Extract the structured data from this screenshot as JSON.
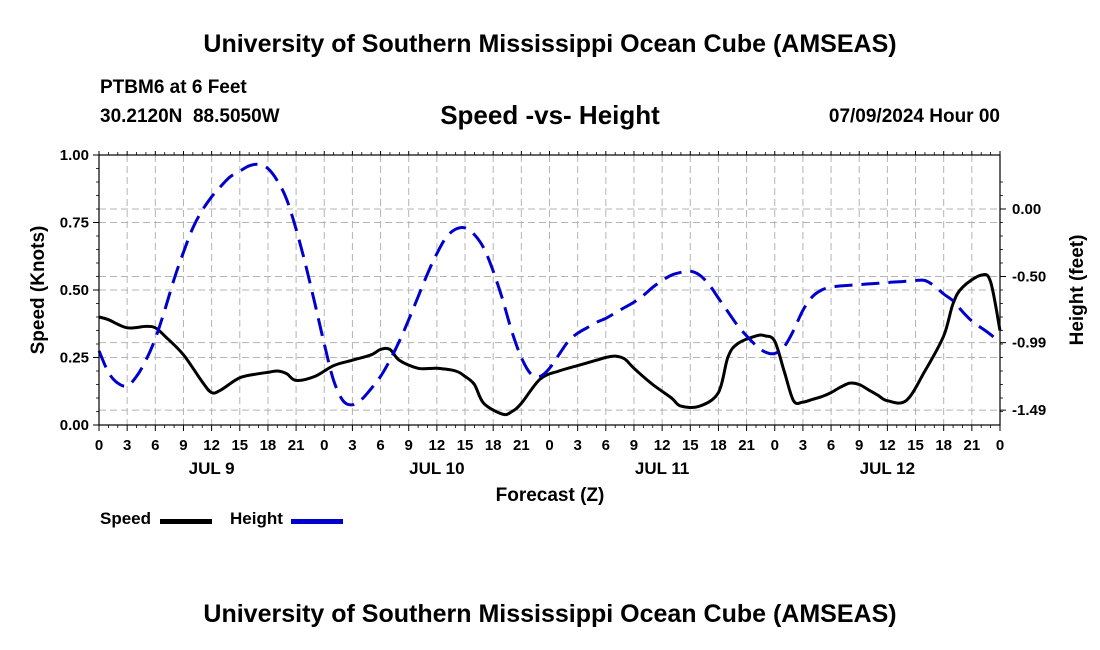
{
  "header": {
    "title": "University of Southern Mississippi Ocean Cube (AMSEAS)",
    "station": "PTBM6 at 6 Feet",
    "coordinates": "30.2120N  88.5050W",
    "datetime": "07/09/2024 Hour 00",
    "footer_title": "University of Southern Mississippi Ocean Cube (AMSEAS)"
  },
  "chart_data": {
    "type": "line",
    "title": "Speed -vs- Height",
    "xlabel": "Forecast (Z)",
    "ylabel": "Speed (Knots)",
    "y2label": "Height (feet)",
    "xlim": [
      0,
      96
    ],
    "ylim": [
      0,
      1.0
    ],
    "y2lim": [
      -1.6,
      0.4
    ],
    "x_ticks": [
      0,
      3,
      6,
      9,
      12,
      15,
      18,
      21,
      24,
      27,
      30,
      33,
      36,
      39,
      42,
      45,
      48,
      51,
      54,
      57,
      60,
      63,
      66,
      69,
      72,
      75,
      78,
      81,
      84,
      87,
      90,
      93,
      96
    ],
    "x_tick_labels": [
      "0",
      "3",
      "6",
      "9",
      "12",
      "15",
      "18",
      "21",
      "0",
      "3",
      "6",
      "9",
      "12",
      "15",
      "18",
      "21",
      "0",
      "3",
      "6",
      "9",
      "12",
      "15",
      "18",
      "21",
      "0",
      "3",
      "6",
      "9",
      "12",
      "15",
      "18",
      "21",
      "0"
    ],
    "day_labels": [
      {
        "x": 12,
        "label": "JUL 9"
      },
      {
        "x": 36,
        "label": "JUL 10"
      },
      {
        "x": 60,
        "label": "JUL 11"
      },
      {
        "x": 84,
        "label": "JUL 12"
      }
    ],
    "y_ticks": [
      0.0,
      0.25,
      0.5,
      0.75,
      1.0
    ],
    "y_tick_labels": [
      "0.00",
      "0.25",
      "0.50",
      "0.75",
      "1.00"
    ],
    "y2_ticks": [
      -1.49,
      -0.99,
      -0.5,
      0.0
    ],
    "y2_tick_labels": [
      "-1.49",
      "-0.99",
      "-0.50",
      "0.00"
    ],
    "grid": true,
    "legend": "bottom-left",
    "series": [
      {
        "name": "Speed",
        "axis": "left",
        "color": "#000000",
        "style": "solid",
        "x": [
          0,
          1,
          3,
          5,
          6,
          7,
          9,
          11,
          12,
          13,
          15,
          17,
          18,
          19,
          20,
          21,
          23,
          25,
          27,
          29,
          30,
          31,
          32,
          34,
          36,
          38,
          39,
          40,
          41,
          43,
          44,
          45,
          47,
          49,
          51,
          53,
          54,
          55,
          56,
          57,
          59,
          61,
          62,
          64,
          66,
          67,
          68,
          70,
          71,
          72,
          73,
          74,
          75,
          76,
          77,
          78,
          79,
          80,
          81,
          82,
          83,
          84,
          86,
          88,
          90,
          91,
          92,
          94,
          95,
          96
        ],
        "values": [
          0.4,
          0.39,
          0.36,
          0.365,
          0.36,
          0.33,
          0.26,
          0.16,
          0.12,
          0.13,
          0.175,
          0.19,
          0.195,
          0.2,
          0.19,
          0.165,
          0.18,
          0.22,
          0.24,
          0.26,
          0.28,
          0.28,
          0.24,
          0.21,
          0.21,
          0.2,
          0.18,
          0.15,
          0.08,
          0.04,
          0.05,
          0.08,
          0.17,
          0.2,
          0.22,
          0.24,
          0.25,
          0.255,
          0.245,
          0.21,
          0.15,
          0.1,
          0.07,
          0.07,
          0.12,
          0.25,
          0.3,
          0.33,
          0.33,
          0.31,
          0.2,
          0.09,
          0.085,
          0.095,
          0.105,
          0.12,
          0.14,
          0.155,
          0.15,
          0.13,
          0.11,
          0.09,
          0.09,
          0.2,
          0.33,
          0.45,
          0.51,
          0.555,
          0.53,
          0.35
        ]
      },
      {
        "name": "Height",
        "axis": "right",
        "color": "#0000cc",
        "style": "dashed",
        "x": [
          0,
          1,
          2,
          3,
          4,
          5,
          6,
          7,
          8,
          9,
          10,
          11,
          12,
          13,
          14,
          15,
          16,
          17,
          18,
          19,
          20,
          21,
          22,
          23,
          24,
          25,
          26,
          27,
          28,
          29,
          30,
          31,
          32,
          33,
          34,
          35,
          36,
          37,
          38,
          39,
          40,
          41,
          42,
          43,
          44,
          45,
          46,
          47,
          48,
          49,
          50,
          51,
          52,
          53,
          54,
          55,
          56,
          57,
          58,
          59,
          60,
          61,
          62,
          63,
          64,
          65,
          66,
          67,
          68,
          69,
          70,
          71,
          72,
          73,
          74,
          75,
          76,
          77,
          78,
          79,
          80,
          81,
          82,
          83,
          84,
          85,
          86,
          87,
          88,
          89,
          90,
          91,
          92,
          93,
          94,
          95,
          96
        ],
        "values": [
          -1.05,
          -1.21,
          -1.29,
          -1.31,
          -1.24,
          -1.12,
          -0.96,
          -0.75,
          -0.52,
          -0.32,
          -0.14,
          -0.01,
          0.09,
          0.17,
          0.24,
          0.28,
          0.32,
          0.33,
          0.3,
          0.21,
          0.07,
          -0.15,
          -0.41,
          -0.7,
          -1.0,
          -1.27,
          -1.42,
          -1.45,
          -1.41,
          -1.33,
          -1.24,
          -1.12,
          -0.98,
          -0.82,
          -0.65,
          -0.48,
          -0.33,
          -0.21,
          -0.15,
          -0.14,
          -0.19,
          -0.29,
          -0.46,
          -0.67,
          -0.91,
          -1.1,
          -1.22,
          -1.24,
          -1.18,
          -1.08,
          -0.98,
          -0.92,
          -0.88,
          -0.84,
          -0.81,
          -0.77,
          -0.73,
          -0.69,
          -0.64,
          -0.58,
          -0.53,
          -0.49,
          -0.47,
          -0.46,
          -0.49,
          -0.56,
          -0.66,
          -0.76,
          -0.86,
          -0.94,
          -1.01,
          -1.06,
          -1.07,
          -1.02,
          -0.9,
          -0.75,
          -0.65,
          -0.6,
          -0.58,
          -0.57,
          -0.565,
          -0.56,
          -0.555,
          -0.55,
          -0.545,
          -0.54,
          -0.535,
          -0.53,
          -0.53,
          -0.57,
          -0.63,
          -0.68,
          -0.76,
          -0.83,
          -0.88,
          -0.93,
          -0.99
        ]
      }
    ]
  }
}
